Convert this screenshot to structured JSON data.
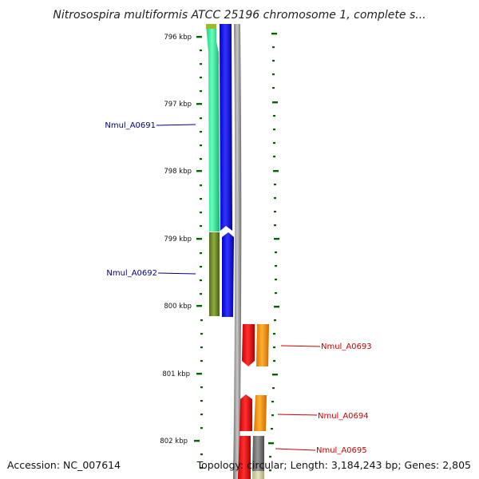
{
  "title": "Nitrosospira multiformis ATCC 25196 chromosome 1, complete s...",
  "accession": "Accession: NC_007614",
  "summary": "Topology: circular; Length: 3,184,243 bp; Genes: 2,805",
  "ruler": [
    "796 kbp",
    "797 kbp",
    "798 kbp",
    "799 kbp",
    "800 kbp",
    "801 kbp",
    "802 kbp"
  ],
  "genes": {
    "left": [
      "Nmul_A0691",
      "Nmul_A0692"
    ],
    "right": [
      "Nmul_A0693",
      "Nmul_A0694",
      "Nmul_A0695"
    ]
  },
  "colors": {
    "left_label": "#000080",
    "right_label": "#cc0000",
    "ruler_tick": "#006600",
    "track_backbone": "#808080",
    "gene_0691": "#33ee99",
    "gene_0692": "#6b8e23",
    "cds_blue": "#0000ff",
    "cds_red": "#ff0000",
    "cds_orange": "#ff9900",
    "cds_gray": "#777777"
  }
}
